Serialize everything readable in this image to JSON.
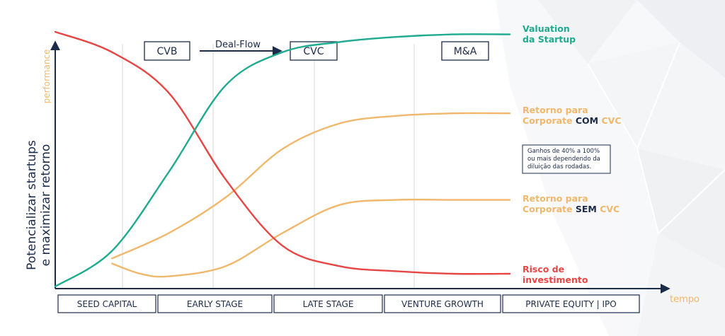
{
  "chart_data": {
    "type": "line",
    "ylabel": [
      "Potencializar startups",
      "e maximizar retorno"
    ],
    "ylabel_secondary": "performance",
    "xlabel": "tempo",
    "categories": [
      "SEED CAPITAL",
      "EARLY STAGE",
      "LATE STAGE",
      "VENTURE GROWTH",
      "PRIVATE EQUITY | IPO"
    ],
    "top_labels": [
      {
        "label": "CVB",
        "stage": 1
      },
      {
        "label": "CVC",
        "stage": 2
      },
      {
        "label": "M&A",
        "stage": 3
      }
    ],
    "flow_label": "Deal-Flow",
    "series": [
      {
        "key": "valuation",
        "name_lines": [
          [
            {
              "t": "Valuation",
              "c": "#1eab8f"
            }
          ],
          [
            {
              "t": "da Startup",
              "c": "#1eab8f"
            }
          ]
        ],
        "color": "#1eab8f",
        "x": [
          0.0,
          0.5,
          1.0,
          1.5,
          2.0,
          2.5,
          3.0,
          3.5,
          4.0
        ],
        "y": [
          0.0,
          0.14,
          0.45,
          0.79,
          0.92,
          0.96,
          0.98,
          0.99,
          0.99
        ]
      },
      {
        "key": "com_cvc",
        "name_lines": [
          [
            {
              "t": "Retorno para",
              "c": "#f0b86c"
            }
          ],
          [
            {
              "t": "Corporate ",
              "c": "#f0b86c"
            },
            {
              "t": "COM",
              "c": "#1c2b4a"
            },
            {
              "t": " CVC",
              "c": "#f0b86c"
            }
          ]
        ],
        "color": "#f0b86c",
        "x": [
          0.5,
          1.0,
          1.5,
          2.0,
          2.5,
          3.0,
          3.5,
          4.0
        ],
        "y": [
          0.11,
          0.21,
          0.35,
          0.54,
          0.64,
          0.67,
          0.68,
          0.68
        ]
      },
      {
        "key": "sem_cvc",
        "name_lines": [
          [
            {
              "t": "Retorno para",
              "c": "#f0b86c"
            }
          ],
          [
            {
              "t": "Corporate ",
              "c": "#f0b86c"
            },
            {
              "t": "SEM",
              "c": "#1c2b4a"
            },
            {
              "t": " CVC",
              "c": "#f0b86c"
            }
          ]
        ],
        "color": "#f0b86c",
        "x": [
          0.5,
          0.75,
          1.0,
          1.5,
          2.0,
          2.5,
          3.0,
          3.5,
          4.0
        ],
        "y": [
          0.09,
          0.05,
          0.04,
          0.08,
          0.21,
          0.32,
          0.34,
          0.34,
          0.34
        ]
      },
      {
        "key": "risco",
        "name_lines": [
          [
            {
              "t": "Risco de",
              "c": "#e84545"
            }
          ],
          [
            {
              "t": "investimento",
              "c": "#e84545"
            }
          ]
        ],
        "color": "#e84545",
        "x": [
          0.0,
          0.5,
          1.0,
          1.5,
          2.0,
          2.5,
          3.0,
          3.5,
          4.0
        ],
        "y": [
          1.0,
          0.92,
          0.76,
          0.42,
          0.16,
          0.08,
          0.06,
          0.05,
          0.05
        ]
      }
    ],
    "annotation": [
      "Ganhos de 40% a 100%",
      "ou mais dependendo da",
      "diluição das rodadas."
    ],
    "xlim": [
      0,
      4
    ],
    "ylim": [
      0,
      1
    ]
  },
  "colors": {
    "axis": "#1c2b4a",
    "valuation": "#1eab8f",
    "retorno": "#f0b86c",
    "risco": "#e84545"
  }
}
